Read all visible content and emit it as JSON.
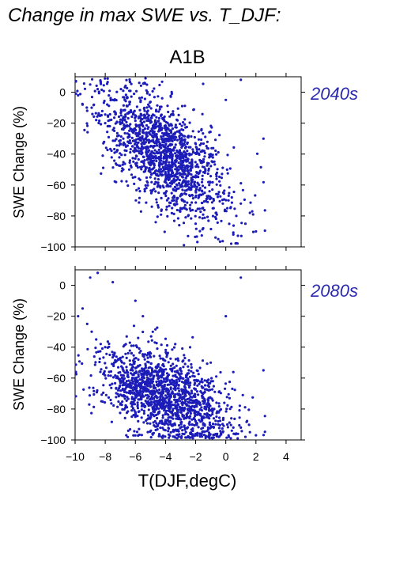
{
  "title": "Change in max SWE vs. T_DJF:",
  "scenario": "A1B",
  "colors": {
    "points": "#1c1cb8",
    "period_label": "#2a2ab0",
    "axes": "#000000"
  },
  "chart_data": [
    {
      "type": "scatter",
      "panel": "2040s",
      "ylabel": "SWE Change (%)",
      "xlabel": "",
      "xlim": [
        -10,
        5
      ],
      "ylim": [
        -100,
        10
      ],
      "xticks": [
        -10,
        -8,
        -6,
        -4,
        -2,
        0,
        2,
        4
      ],
      "yticks": [
        0,
        -20,
        -40,
        -60,
        -80,
        -100
      ],
      "ytick_labels": [
        "0",
        "−20",
        "−40",
        "−60",
        "−80",
        "−100"
      ],
      "x": [
        -9.8,
        -9.5,
        -9.2,
        -8.9,
        -8.6,
        -8.3,
        -8.0,
        -7.7,
        -7.4,
        -7.1,
        -6.8,
        -6.5,
        -6.2,
        -5.9,
        -5.6,
        -5.3,
        -5.0,
        -4.7,
        -4.4,
        -4.1,
        -3.8,
        -3.5,
        -3.2,
        -2.9,
        -2.6,
        -2.3,
        -2.0,
        -1.7,
        -1.4,
        -1.1,
        -0.8,
        -0.5,
        -0.2,
        0.1,
        0.4,
        0.7,
        1.0,
        1.3,
        1.6,
        2.0,
        2.5,
        -9.0,
        -8.5,
        -7.5,
        -6.0,
        -5.5,
        -4.5,
        -3.5,
        -2.5,
        -1.5,
        -0.5,
        0.5,
        -6.8,
        -5.0,
        -4.0,
        -3.0,
        -2.0,
        -1.0,
        0.0,
        1.0
      ],
      "y": [
        -2,
        -8,
        -12,
        -10,
        -18,
        -15,
        -20,
        -22,
        -25,
        -28,
        -30,
        -32,
        -35,
        -38,
        -40,
        -36,
        -45,
        -42,
        -48,
        -50,
        -52,
        -46,
        -55,
        -50,
        -58,
        -60,
        -55,
        -62,
        -65,
        -60,
        -70,
        -66,
        -72,
        -75,
        -68,
        -80,
        -72,
        -85,
        -78,
        -90,
        -30,
        5,
        2,
        -5,
        -15,
        -25,
        -60,
        -70,
        -80,
        -88,
        -95,
        -92,
        -50,
        -55,
        -65,
        -75,
        -85,
        -40,
        -5,
        8
      ]
    },
    {
      "type": "scatter",
      "panel": "2080s",
      "ylabel": "SWE Change (%)",
      "xlabel": "T(DJF,degC)",
      "xlim": [
        -10,
        5
      ],
      "ylim": [
        -100,
        10
      ],
      "xticks": [
        -10,
        -8,
        -6,
        -4,
        -2,
        0,
        2,
        4
      ],
      "xtick_labels": [
        "−10",
        "−8",
        "−6",
        "−4",
        "−2",
        "0",
        "2",
        "4"
      ],
      "yticks": [
        0,
        -20,
        -40,
        -60,
        -80,
        -100
      ],
      "ytick_labels": [
        "0",
        "−20",
        "−40",
        "−60",
        "−80",
        "−100"
      ],
      "x": [
        -9.8,
        -9.5,
        -9.2,
        -8.9,
        -8.6,
        -8.3,
        -8.0,
        -7.7,
        -7.4,
        -7.1,
        -6.8,
        -6.5,
        -6.2,
        -5.9,
        -5.6,
        -5.3,
        -5.0,
        -4.7,
        -4.4,
        -4.1,
        -3.8,
        -3.5,
        -3.2,
        -2.9,
        -2.6,
        -2.3,
        -2.0,
        -1.7,
        -1.4,
        -1.1,
        -0.8,
        -0.5,
        -0.2,
        0.1,
        0.4,
        0.7,
        1.0,
        1.3,
        1.6,
        2.0,
        2.5,
        -9.0,
        -8.5,
        -7.5,
        -6.0,
        -5.5,
        -4.5,
        -3.5,
        -2.5,
        -1.5,
        -0.5,
        0.5,
        -6.8,
        -5.0,
        -4.0,
        -3.0,
        -2.0,
        -1.0,
        0.0,
        1.0
      ],
      "y": [
        -20,
        -15,
        -25,
        -30,
        -35,
        -38,
        -40,
        -45,
        -50,
        -48,
        -55,
        -58,
        -60,
        -62,
        -65,
        -68,
        -70,
        -72,
        -75,
        -74,
        -78,
        -80,
        -82,
        -76,
        -85,
        -80,
        -88,
        -84,
        -90,
        -86,
        -92,
        -88,
        -95,
        -90,
        -94,
        -96,
        -92,
        -98,
        -95,
        -97,
        -55,
        5,
        8,
        2,
        -10,
        -20,
        -60,
        -70,
        -80,
        -85,
        -90,
        -92,
        -62,
        -65,
        -75,
        -82,
        -88,
        -50,
        -20,
        5
      ]
    }
  ]
}
